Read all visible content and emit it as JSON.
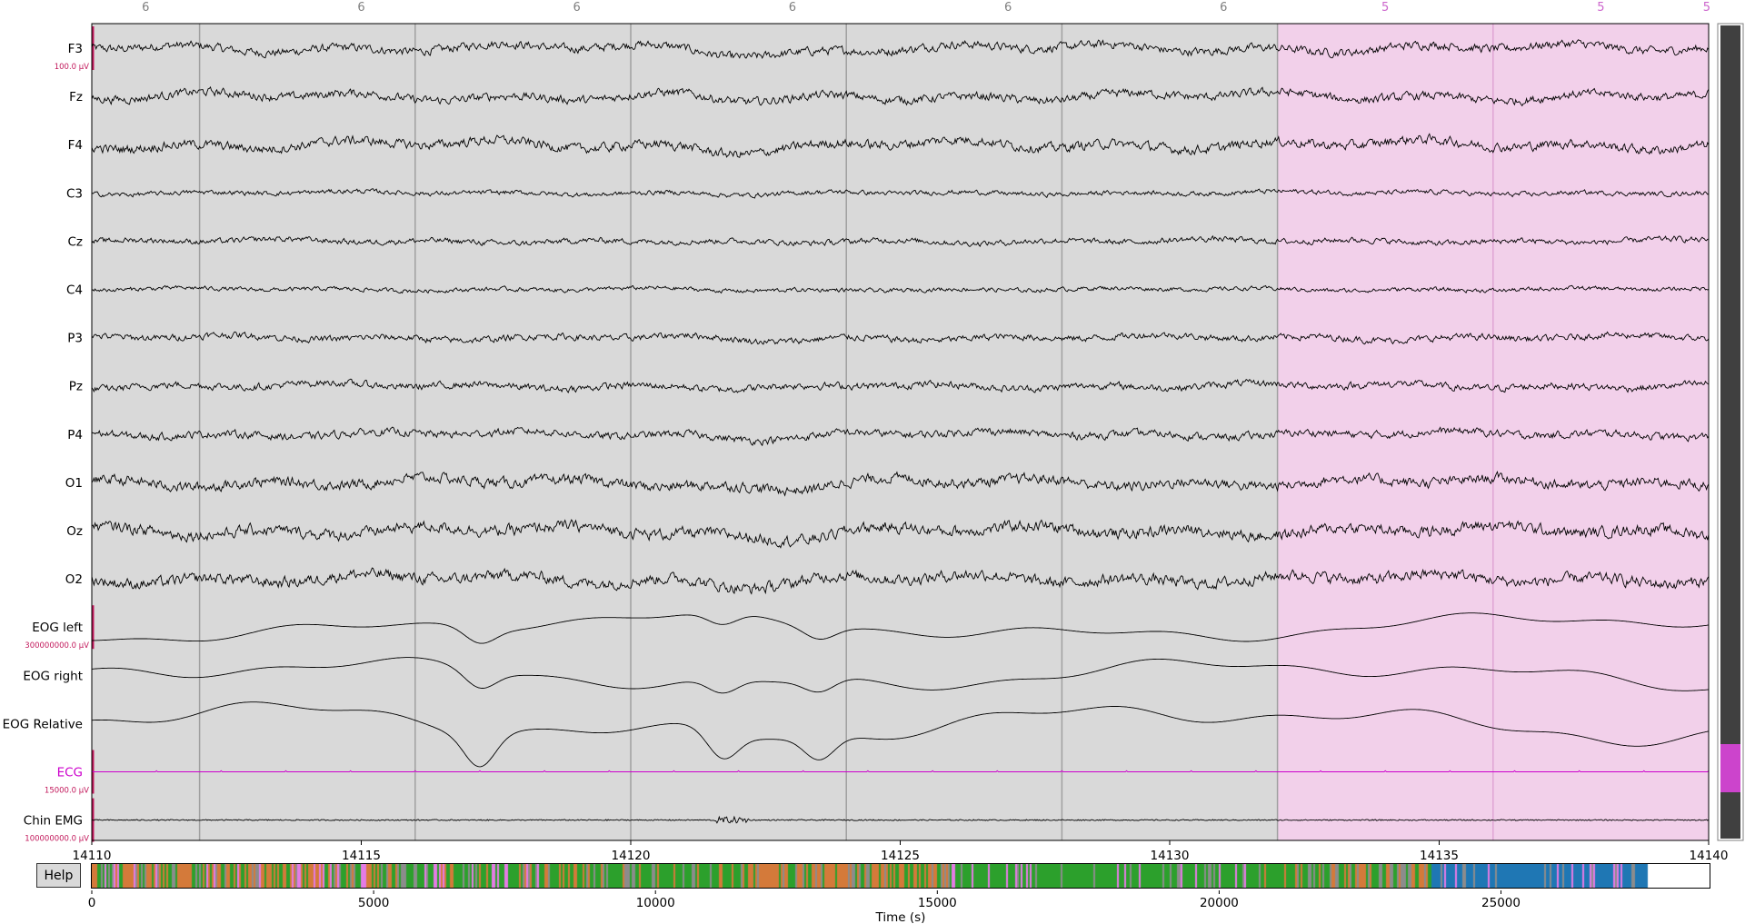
{
  "help_label": "Help",
  "epoch_labels": [
    {
      "text": "6",
      "color": "#808080"
    },
    {
      "text": "6",
      "color": "#808080"
    },
    {
      "text": "6",
      "color": "#808080"
    },
    {
      "text": "6",
      "color": "#808080"
    },
    {
      "text": "6",
      "color": "#808080"
    },
    {
      "text": "6",
      "color": "#808080"
    },
    {
      "text": "5",
      "color": "#cc66cc"
    },
    {
      "text": "5",
      "color": "#cc66cc"
    },
    {
      "text": "5",
      "color": "#cc66cc"
    }
  ],
  "channels": [
    {
      "name": "F3",
      "color": "#000000",
      "scale": "100.0 µV",
      "amp": 1.0,
      "noise": 0.9
    },
    {
      "name": "Fz",
      "color": "#000000",
      "scale": "",
      "amp": 1.0,
      "noise": 0.9
    },
    {
      "name": "F4",
      "color": "#000000",
      "scale": "",
      "amp": 1.1,
      "noise": 1.0
    },
    {
      "name": "C3",
      "color": "#000000",
      "scale": "",
      "amp": 0.35,
      "noise": 0.5
    },
    {
      "name": "Cz",
      "color": "#000000",
      "scale": "",
      "amp": 0.45,
      "noise": 0.6
    },
    {
      "name": "C4",
      "color": "#000000",
      "scale": "",
      "amp": 0.3,
      "noise": 0.45
    },
    {
      "name": "P3",
      "color": "#000000",
      "scale": "",
      "amp": 0.55,
      "noise": 0.7
    },
    {
      "name": "Pz",
      "color": "#000000",
      "scale": "",
      "amp": 0.6,
      "noise": 0.75
    },
    {
      "name": "P4",
      "color": "#000000",
      "scale": "",
      "amp": 0.65,
      "noise": 0.8
    },
    {
      "name": "O1",
      "color": "#000000",
      "scale": "",
      "amp": 1.0,
      "noise": 1.1
    },
    {
      "name": "Oz",
      "color": "#000000",
      "scale": "",
      "amp": 1.1,
      "noise": 1.2
    },
    {
      "name": "O2",
      "color": "#000000",
      "scale": "",
      "amp": 1.1,
      "noise": 1.2
    },
    {
      "name": "EOG left",
      "color": "#000000",
      "scale": "300000000.0 µV",
      "amp": 1.6,
      "noise": 0.05
    },
    {
      "name": "EOG right",
      "color": "#000000",
      "scale": "",
      "amp": 1.8,
      "noise": 0.05
    },
    {
      "name": "EOG Relative",
      "color": "#000000",
      "scale": "",
      "amp": 2.2,
      "noise": 0.05
    },
    {
      "name": "ECG",
      "color": "#cc00cc",
      "scale": "15000.0 µV",
      "amp": 0.05,
      "noise": 0.02
    },
    {
      "name": "Chin EMG",
      "color": "#000000",
      "scale": "100000000.0 µV",
      "amp": 0.1,
      "noise": 0.08
    }
  ],
  "time_axis": {
    "ticks": [
      "14110",
      "14115",
      "14120",
      "14125",
      "14130",
      "14135",
      "14140"
    ],
    "xlim": [
      14110,
      14140
    ]
  },
  "annotations": {
    "grey_color": "#d9d9d9",
    "pink_color": "#f2d0ea",
    "pink_start": 14132,
    "epoch_boundaries": [
      14112,
      14116,
      14120,
      14124,
      14128,
      14132,
      14136
    ]
  },
  "hypnogram": {
    "xlabel": "Time (s)",
    "ticks": [
      "0",
      "5000",
      "10000",
      "15000",
      "20000",
      "25000"
    ],
    "xlim": [
      0,
      28700
    ],
    "data_end": 27600,
    "stage_colors": {
      "N2": "#2ca02c",
      "N3": "#1f77b4",
      "REM": "#e57be5",
      "N1": "#d47a3a",
      "Wake": "#8c8c8c"
    }
  },
  "scrollbar": {
    "thumb_color": "#cc44cc",
    "track_color": "#404040"
  }
}
